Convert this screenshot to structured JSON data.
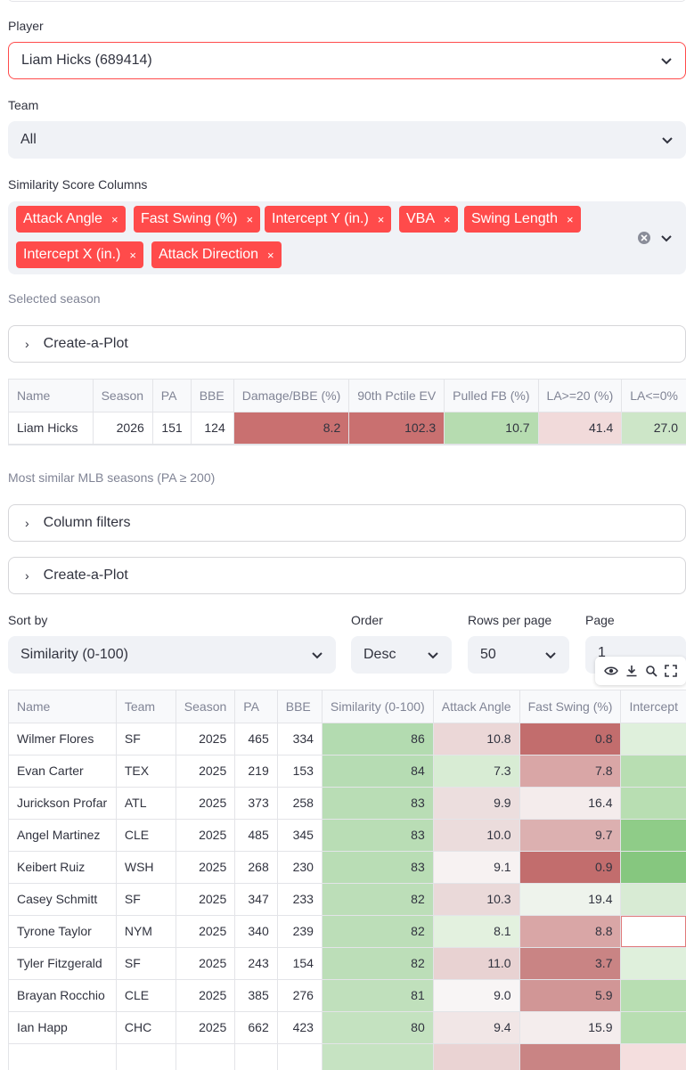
{
  "player": {
    "label": "Player",
    "value": "Liam Hicks (689414)"
  },
  "team": {
    "label": "Team",
    "value": "All"
  },
  "similarity_columns": {
    "label": "Similarity Score Columns",
    "tags": [
      "Attack Angle",
      "Fast Swing (%)",
      "Intercept Y (in.)",
      "VBA",
      "Swing Length",
      "Intercept X (in.)",
      "Attack Direction"
    ],
    "remove_glyph": "×"
  },
  "selected_season_caption": "Selected season",
  "create_plot_1": "Create-a-Plot",
  "season_table": {
    "headers": [
      "Name",
      "Season",
      "PA",
      "BBE",
      "Damage/BBE (%)",
      "90th Pctile EV",
      "Pulled FB (%)",
      "LA>=20 (%)",
      "LA<=0%"
    ],
    "row": [
      "Liam Hicks",
      "2026",
      "151",
      "124",
      "8.2",
      "102.3",
      "10.7",
      "41.4",
      "27.0"
    ],
    "row_colors": [
      "#ffffff",
      "#ffffff",
      "#ffffff",
      "#ffffff",
      "#c97070",
      "#c97070",
      "#b6dcb0",
      "#f1dada",
      "#cde6c8"
    ]
  },
  "similar_caption": "Most similar MLB seasons (PA ≥ 200)",
  "column_filters": "Column filters",
  "create_plot_2": "Create-a-Plot",
  "controls": {
    "sort_by": {
      "label": "Sort by",
      "value": "Similarity (0-100)"
    },
    "order": {
      "label": "Order",
      "value": "Desc"
    },
    "rows_per_page": {
      "label": "Rows per page",
      "value": "50"
    },
    "page": {
      "label": "Page",
      "value": "1"
    }
  },
  "results": {
    "headers": [
      "Name",
      "Team",
      "Season",
      "PA",
      "BBE",
      "Similarity (0-100)",
      "Attack Angle",
      "Fast Swing (%)",
      "Intercept"
    ],
    "rows": [
      {
        "cells": [
          "Wilmer Flores",
          "SF",
          "2025",
          "465",
          "334",
          "86",
          "10.8",
          "0.8",
          ""
        ],
        "colors": [
          "#b3dbb0",
          "#ebd7d7",
          "#c26d6d",
          "#dff0dc"
        ]
      },
      {
        "cells": [
          "Evan Carter",
          "TEX",
          "2025",
          "219",
          "153",
          "84",
          "7.3",
          "7.8",
          ""
        ],
        "colors": [
          "#b6dcb3",
          "#d8ecd4",
          "#d9a6a6",
          "#b8deb2"
        ]
      },
      {
        "cells": [
          "Jurickson Profar",
          "ATL",
          "2025",
          "373",
          "258",
          "83",
          "9.9",
          "16.4",
          ""
        ],
        "colors": [
          "#b9ddb5",
          "#ecdede",
          "#f4ecec",
          "#b8deb2"
        ]
      },
      {
        "cells": [
          "Angel Martinez",
          "CLE",
          "2025",
          "485",
          "345",
          "83",
          "10.0",
          "9.7",
          ""
        ],
        "colors": [
          "#b9ddb5",
          "#ebdcdc",
          "#dcb0b0",
          "#8fcc88"
        ]
      },
      {
        "cells": [
          "Keibert Ruiz",
          "WSH",
          "2025",
          "268",
          "230",
          "83",
          "9.1",
          "0.9",
          ""
        ],
        "colors": [
          "#b9ddb5",
          "#f7f2f2",
          "#c26d6d",
          "#86c77f"
        ]
      },
      {
        "cells": [
          "Casey Schmitt",
          "SF",
          "2025",
          "347",
          "233",
          "82",
          "10.3",
          "19.4",
          ""
        ],
        "colors": [
          "#bcdeb8",
          "#ead9d9",
          "#eef3ec",
          "#d8ebd4"
        ]
      },
      {
        "cells": [
          "Tyrone Taylor",
          "NYM",
          "2025",
          "340",
          "239",
          "82",
          "8.1",
          "8.8",
          ""
        ],
        "colors": [
          "#bcdeb8",
          "#e3f1df",
          "#d9a6a6",
          "#ffffff"
        ]
      },
      {
        "cells": [
          "Tyler Fitzgerald",
          "SF",
          "2025",
          "243",
          "154",
          "82",
          "11.0",
          "3.7",
          ""
        ],
        "colors": [
          "#bcdeb8",
          "#e8d2d2",
          "#c98484",
          "#dff0dc"
        ]
      },
      {
        "cells": [
          "Brayan Rocchio",
          "CLE",
          "2025",
          "385",
          "276",
          "81",
          "9.0",
          "5.9",
          ""
        ],
        "colors": [
          "#c0e0bc",
          "#f8f5f5",
          "#d19696",
          "#b8deb2"
        ]
      },
      {
        "cells": [
          "Ian Happ",
          "CHC",
          "2025",
          "662",
          "423",
          "80",
          "9.4",
          "15.9",
          ""
        ],
        "colors": [
          "#c4e2c0",
          "#f1e6e6",
          "#f4eded",
          "#b8deb2"
        ]
      }
    ],
    "partial_row_colors": [
      "#ffffff",
      "#ffffff",
      "#ffffff",
      "#ffffff",
      "#ffffff",
      "#c6e3c2",
      "#ead3d3",
      "#c98484",
      "#f4dede"
    ]
  },
  "colors": {
    "accent": "#ff4b4b",
    "widget_bg": "#f0f2f6"
  },
  "toolbar_icons": [
    "eye-icon",
    "download-icon",
    "search-icon",
    "fullscreen-icon"
  ]
}
